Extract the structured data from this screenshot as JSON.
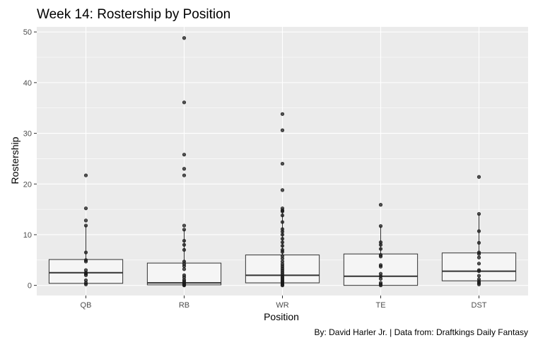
{
  "chart_data": {
    "type": "boxplot",
    "title": "Week 14: Rostership by Position",
    "xlabel": "Position",
    "ylabel": "Rostership",
    "caption": "By: David Harler Jr. | Data from: Draftkings Daily Fantasy",
    "categories": [
      "QB",
      "RB",
      "WR",
      "TE",
      "DST"
    ],
    "ylim": [
      -2,
      51
    ],
    "yticks": [
      0,
      10,
      20,
      30,
      40,
      50
    ],
    "grid": true,
    "legend": "none",
    "colors": {
      "panel": "#ebebeb",
      "grid": "#ffffff",
      "box_fill": "#f5f5f5",
      "box_stroke": "#333333",
      "point": "#1a1a1a"
    },
    "boxes": [
      {
        "category": "QB",
        "q1": 0.4,
        "median": 2.5,
        "q3": 5.1,
        "whisker_low": 0.0,
        "whisker_high": 11.8
      },
      {
        "category": "RB",
        "q1": 0.1,
        "median": 0.5,
        "q3": 4.4,
        "whisker_low": 0.0,
        "whisker_high": 11.0
      },
      {
        "category": "WR",
        "q1": 0.5,
        "median": 2.0,
        "q3": 6.0,
        "whisker_low": 0.0,
        "whisker_high": 14.8
      },
      {
        "category": "TE",
        "q1": 0.0,
        "median": 1.8,
        "q3": 6.2,
        "whisker_low": 0.0,
        "whisker_high": 11.7
      },
      {
        "category": "DST",
        "q1": 0.9,
        "median": 2.8,
        "q3": 6.4,
        "whisker_low": 0.0,
        "whisker_high": 14.1
      }
    ],
    "points": [
      {
        "category": "QB",
        "values": [
          21.7,
          15.2,
          12.8,
          11.8,
          6.5,
          5.0,
          4.7,
          3.0,
          2.5,
          2.3,
          2.0,
          1.0,
          0.5,
          0.2
        ]
      },
      {
        "category": "RB",
        "values": [
          48.8,
          36.1,
          25.8,
          23.0,
          21.7,
          11.8,
          11.0,
          8.8,
          8.0,
          7.0,
          4.7,
          4.2,
          3.8,
          3.2,
          2.0,
          1.6,
          1.1,
          0.8,
          0.5,
          0.3,
          0.2,
          0.1,
          0.0
        ]
      },
      {
        "category": "WR",
        "values": [
          33.8,
          30.6,
          24.0,
          18.8,
          15.2,
          14.8,
          14.6,
          13.8,
          12.5,
          11.1,
          10.6,
          10.0,
          9.2,
          8.5,
          7.8,
          7.0,
          6.6,
          5.8,
          5.3,
          4.7,
          4.2,
          3.8,
          3.4,
          3.0,
          2.6,
          2.2,
          1.8,
          1.5,
          1.2,
          0.9,
          0.7,
          0.5,
          0.3,
          0.1,
          0.0
        ]
      },
      {
        "category": "TE",
        "values": [
          15.9,
          11.7,
          8.5,
          8.0,
          7.2,
          6.0,
          5.7,
          4.0,
          3.7,
          2.3,
          1.8,
          1.3,
          0.5,
          0.2,
          0.0
        ]
      },
      {
        "category": "DST",
        "values": [
          21.4,
          14.1,
          10.7,
          8.4,
          6.5,
          6.2,
          5.5,
          4.3,
          3.0,
          2.8,
          1.9,
          1.2,
          0.8,
          0.5,
          0.2
        ]
      }
    ]
  }
}
